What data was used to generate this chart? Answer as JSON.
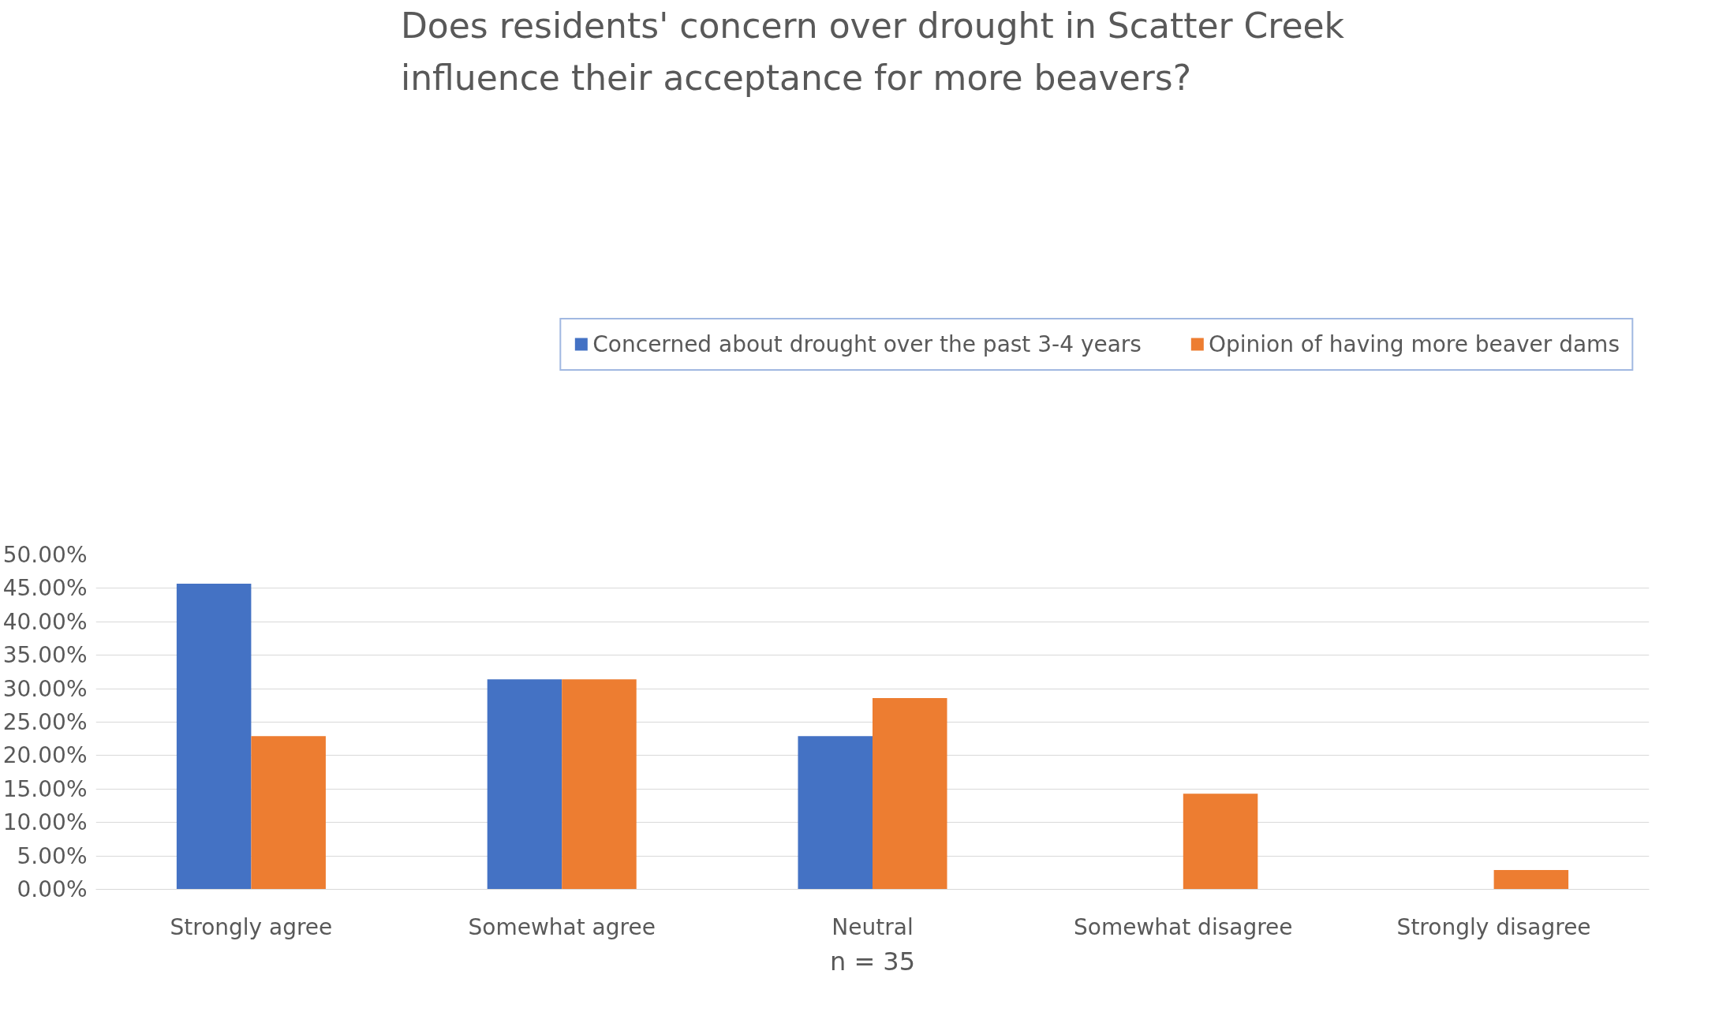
{
  "chart_data": {
    "type": "bar",
    "title": "Does residents' concern over drought in Scatter Creek\ninfluence their acceptance for more beavers?",
    "categories": [
      "Strongly agree",
      "Somewhat agree",
      "Neutral",
      "Somewhat disagree",
      "Strongly disagree"
    ],
    "series": [
      {
        "name": "Concerned about drought over the past 3-4 years",
        "color": "#4472c4",
        "values": [
          45.7,
          31.4,
          22.9,
          0,
          0
        ]
      },
      {
        "name": "Opinion of having more beaver dams",
        "color": "#ed7d31",
        "values": [
          22.9,
          31.4,
          28.6,
          14.3,
          2.9
        ]
      }
    ],
    "xlabel": "n = 35",
    "ylim": [
      0,
      50
    ],
    "yticks": [
      {
        "value": 0,
        "label": "0.00%"
      },
      {
        "value": 5,
        "label": "5.00%"
      },
      {
        "value": 10,
        "label": "10.00%"
      },
      {
        "value": 15,
        "label": "15.00%"
      },
      {
        "value": 20,
        "label": "20.00%"
      },
      {
        "value": 25,
        "label": "25.00%"
      },
      {
        "value": 30,
        "label": "30.00%"
      },
      {
        "value": 35,
        "label": "35.00%"
      },
      {
        "value": 40,
        "label": "40.00%"
      },
      {
        "value": 45,
        "label": "45.00%"
      },
      {
        "value": 50,
        "label": "50.00%"
      }
    ],
    "grid": "y",
    "legend": "top"
  }
}
